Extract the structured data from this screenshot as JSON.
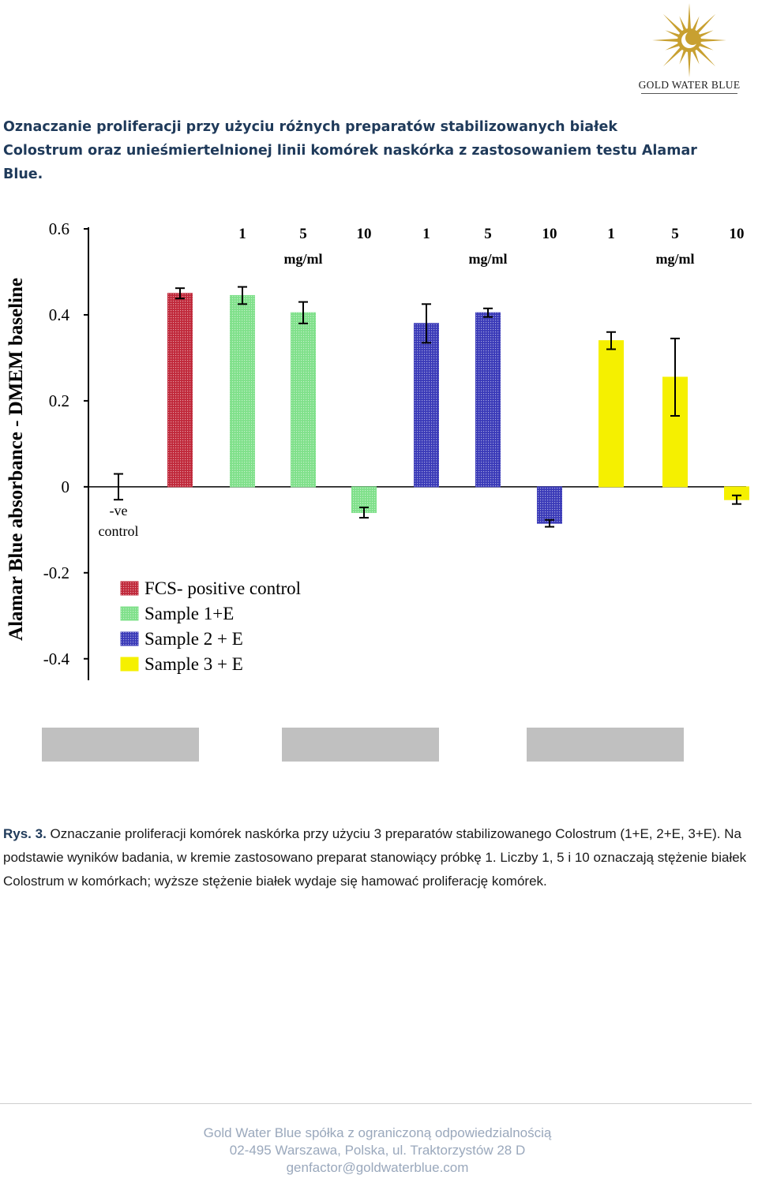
{
  "brand": {
    "name": "GOLD WATER BLUE",
    "colors": {
      "sun": "#c8a030",
      "accent": "#1f3a5a"
    }
  },
  "document": {
    "title": "Oznaczanie proliferacji przy użyciu różnych preparatów stabilizowanych białek Colostrum oraz unieśmiertelnionej linii komórek naskórka z zastosowaniem testu Alamar Blue."
  },
  "caption": {
    "label": "Rys. 3.",
    "text": "Oznaczanie proliferacji komórek naskórka przy użyciu 3 preparatów stabilizowanego Colostrum (1+E, 2+E, 3+E). Na podstawie wyników badania, w kremie zastosowano preparat stanowiący próbkę 1. Liczby 1, 5 i 10 oznaczają stężenie białek Colostrum w komórkach; wyższe stężenie białek wydaje się hamować proliferację komórek."
  },
  "footer": {
    "company": "Gold Water Blue spółka z ograniczoną odpowiedzialnością",
    "address": "02-495 Warszawa, Polska, ul. Traktorzystów 28 D",
    "email": "genfactor@goldwaterblue.com"
  },
  "chart_data": {
    "type": "bar",
    "ylabel": "Alamar Blue absorbance - DMEM baseline",
    "ylim": [
      -0.45,
      0.6
    ],
    "yticks": [
      0.6,
      0.4,
      0.2,
      0,
      -0.2,
      -0.4
    ],
    "ytick_labels": [
      "0.6",
      "0.4",
      "0.2",
      "0",
      "-0.2",
      "-0.4"
    ],
    "grid": false,
    "legend_position": "bottom-left",
    "concentration_labels": [
      "1",
      "5",
      "10",
      "1",
      "5",
      "10",
      "1",
      "5",
      "10"
    ],
    "unit_labels": [
      "mg/ml",
      "mg/ml",
      "mg/ml"
    ],
    "control_label": [
      "-ve",
      "control"
    ],
    "series": [
      {
        "name": "-ve control",
        "color": "#ffffff",
        "values": [
          0
        ],
        "errors": [
          0.03
        ]
      },
      {
        "name": "FCS- positive control",
        "color": "#c0283a",
        "values": [
          0.45
        ],
        "errors": [
          0.012
        ]
      },
      {
        "name": "Sample 1+E",
        "color": "#7fe08a",
        "values": [
          0.445,
          0.405,
          -0.06
        ],
        "errors": [
          0.02,
          0.025,
          0.012
        ]
      },
      {
        "name": "Sample 2 + E",
        "color": "#3a3ab8",
        "values": [
          0.38,
          0.405,
          -0.085
        ],
        "errors": [
          0.045,
          0.01,
          0.008
        ]
      },
      {
        "name": "Sample 3 + E",
        "color": "#f5f000",
        "values": [
          0.34,
          0.255,
          -0.03
        ],
        "errors": [
          0.02,
          0.09,
          0.01
        ]
      }
    ],
    "legend": [
      {
        "label": "FCS- positive control",
        "color": "#c0283a"
      },
      {
        "label": "Sample 1+E",
        "color": "#7fe08a"
      },
      {
        "label": "Sample 2 + E",
        "color": "#3a3ab8"
      },
      {
        "label": "Sample 3 + E",
        "color": "#f5f000"
      }
    ]
  }
}
